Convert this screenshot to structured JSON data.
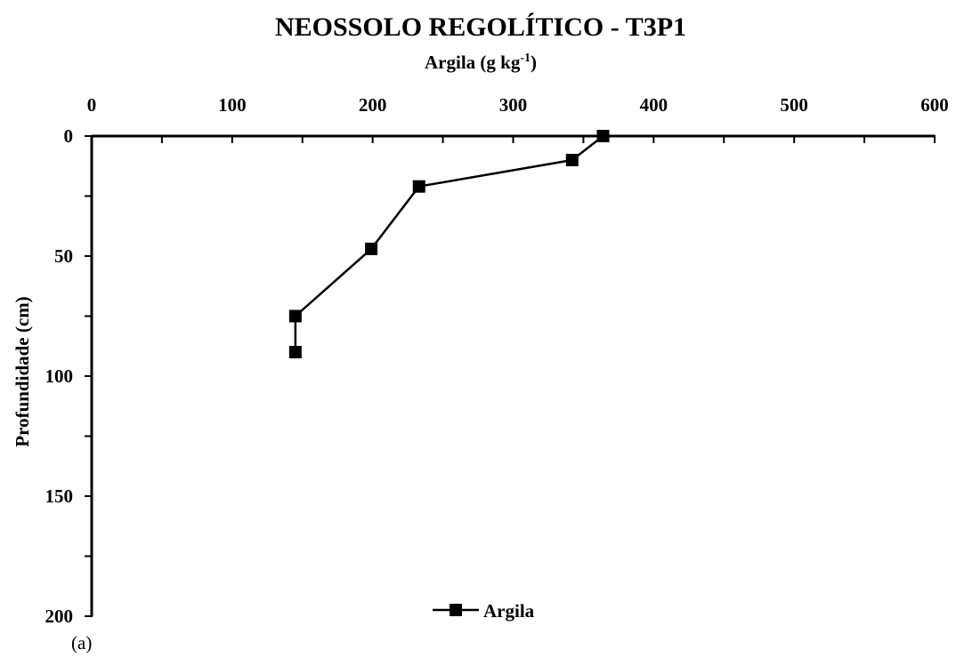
{
  "chart_data": {
    "type": "line",
    "title": "NEOSSOLO REGOLÍTICO - T3P1",
    "xlabel": "Argila (g kg",
    "xlabel_superscript": "-1",
    "xlabel_suffix": ")",
    "ylabel": "Profundidade (cm)",
    "x_axis_position": "top",
    "y_inverted": true,
    "xlim": [
      0,
      600
    ],
    "ylim": [
      0,
      200
    ],
    "x_ticks": [
      0,
      100,
      200,
      300,
      400,
      500,
      600
    ],
    "y_ticks": [
      0,
      50,
      100,
      150,
      200
    ],
    "x_minor_step": 50,
    "y_minor_step": 25,
    "grid": false,
    "legend_position": "bottom-center",
    "series": [
      {
        "name": "Argila",
        "marker": "square",
        "color": "#000000",
        "points": [
          {
            "x": 364,
            "y": 0
          },
          {
            "x": 342,
            "y": 10
          },
          {
            "x": 233,
            "y": 21
          },
          {
            "x": 199,
            "y": 47
          },
          {
            "x": 145,
            "y": 75
          },
          {
            "x": 145,
            "y": 90
          }
        ]
      }
    ],
    "panel_label": "(a)"
  }
}
